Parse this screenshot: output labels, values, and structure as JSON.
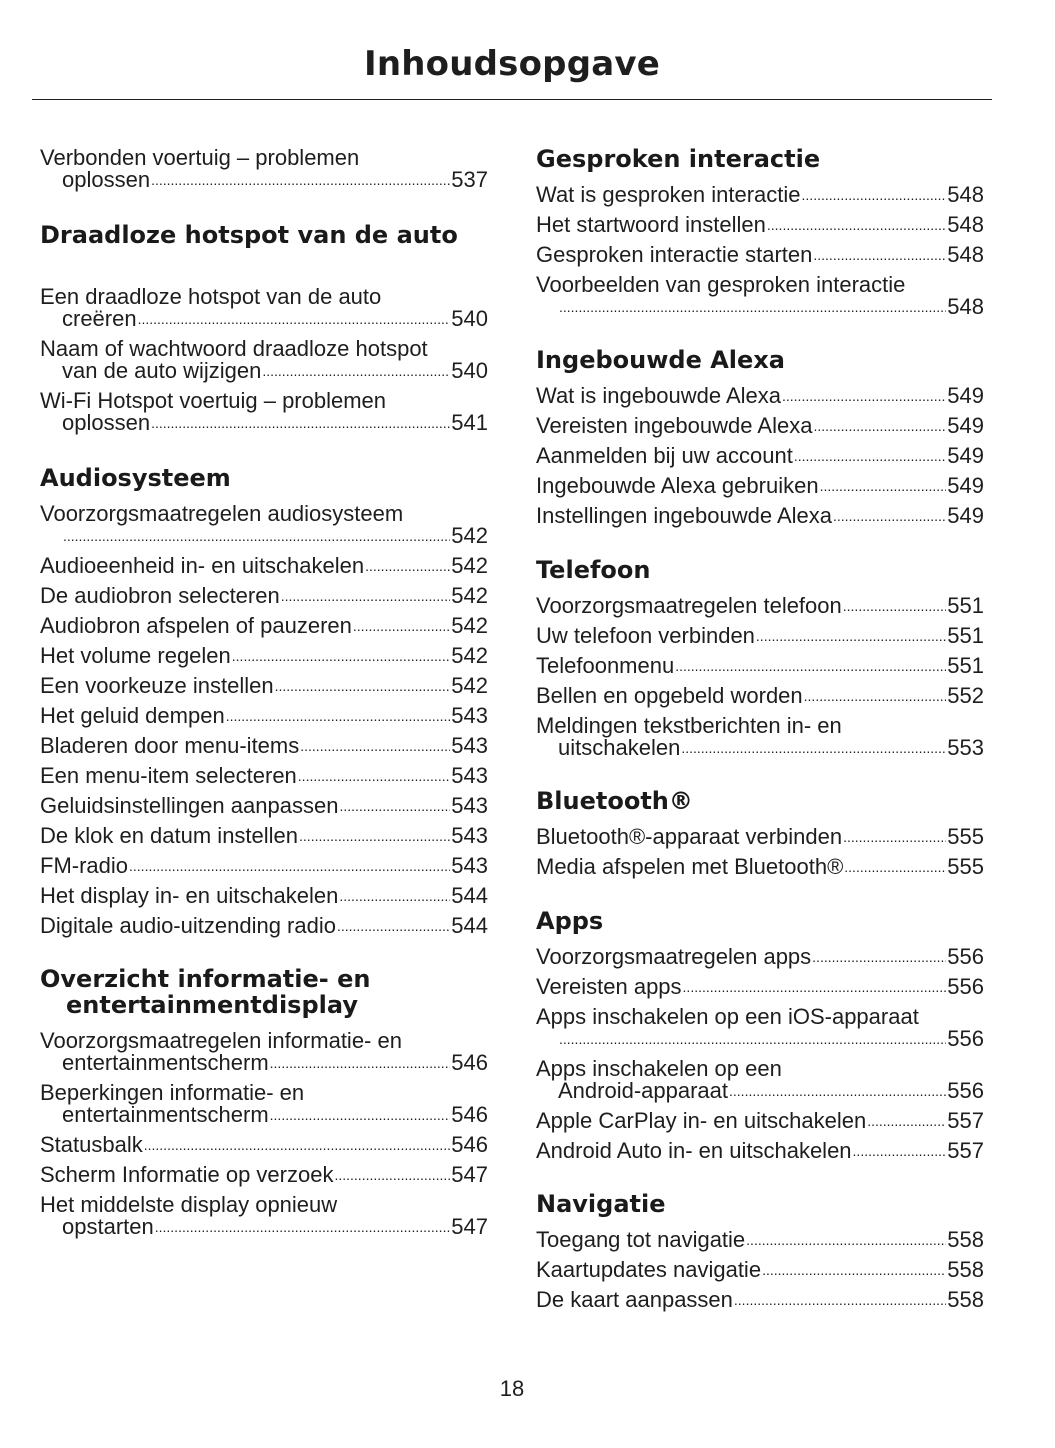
{
  "title": "Inhoudsopgave",
  "page_number": "18",
  "sections": [
    {
      "heading": null,
      "entries": [
        {
          "lines": [
            "Verbonden voertuig – problemen",
            "oplossen"
          ],
          "page": "537"
        }
      ]
    },
    {
      "heading": [
        "Draadloze hotspot van de auto"
      ],
      "entries": [
        {
          "lines": [
            "Een draadloze hotspot van de auto",
            "creëren"
          ],
          "page": "540"
        },
        {
          "lines": [
            "Naam of wachtwoord draadloze hotspot",
            "van de auto wijzigen"
          ],
          "page": "540"
        },
        {
          "lines": [
            "Wi-Fi Hotspot voertuig – problemen",
            "oplossen"
          ],
          "page": "541"
        }
      ]
    },
    {
      "heading": [
        "Audiosysteem"
      ],
      "entries": [
        {
          "lines": [
            "Voorzorgsmaatregelen audiosysteem",
            ""
          ],
          "page": "542"
        },
        {
          "lines": [
            "Audioeenheid in- en uitschakelen"
          ],
          "page": "542"
        },
        {
          "lines": [
            "De audiobron selecteren"
          ],
          "page": "542"
        },
        {
          "lines": [
            "Audiobron afspelen of pauzeren"
          ],
          "page": "542"
        },
        {
          "lines": [
            "Het volume regelen"
          ],
          "page": "542"
        },
        {
          "lines": [
            "Een voorkeuze instellen"
          ],
          "page": "542"
        },
        {
          "lines": [
            "Het geluid dempen"
          ],
          "page": "543"
        },
        {
          "lines": [
            "Bladeren door menu-items"
          ],
          "page": "543"
        },
        {
          "lines": [
            "Een menu-item selecteren"
          ],
          "page": "543"
        },
        {
          "lines": [
            "Geluidsinstellingen aanpassen"
          ],
          "page": "543"
        },
        {
          "lines": [
            "De klok en datum instellen"
          ],
          "page": "543"
        },
        {
          "lines": [
            "FM-radio"
          ],
          "page": "543"
        },
        {
          "lines": [
            "Het display in- en uitschakelen"
          ],
          "page": "544"
        },
        {
          "lines": [
            "Digitale audio-uitzending radio"
          ],
          "page": "544"
        }
      ]
    },
    {
      "heading": [
        "Overzicht informatie- en",
        "entertainmentdisplay"
      ],
      "entries": [
        {
          "lines": [
            "Voorzorgsmaatregelen informatie- en",
            "entertainmentscherm"
          ],
          "page": "546"
        },
        {
          "lines": [
            "Beperkingen informatie- en",
            "entertainmentscherm"
          ],
          "page": "546"
        },
        {
          "lines": [
            "Statusbalk"
          ],
          "page": "546"
        },
        {
          "lines": [
            "Scherm Informatie op verzoek"
          ],
          "page": "547"
        },
        {
          "lines": [
            "Het middelste display opnieuw",
            "opstarten"
          ],
          "page": "547"
        }
      ]
    },
    {
      "heading": [
        "Gesproken interactie"
      ],
      "entries": [
        {
          "lines": [
            "Wat is gesproken interactie"
          ],
          "page": "548"
        },
        {
          "lines": [
            "Het startwoord instellen"
          ],
          "page": "548"
        },
        {
          "lines": [
            "Gesproken interactie starten"
          ],
          "page": "548"
        },
        {
          "lines": [
            "Voorbeelden van gesproken interactie",
            ""
          ],
          "page": "548"
        }
      ]
    },
    {
      "heading": [
        "Ingebouwde Alexa"
      ],
      "entries": [
        {
          "lines": [
            "Wat is ingebouwde Alexa"
          ],
          "page": "549"
        },
        {
          "lines": [
            "Vereisten ingebouwde Alexa"
          ],
          "page": "549"
        },
        {
          "lines": [
            "Aanmelden bij uw account"
          ],
          "page": "549"
        },
        {
          "lines": [
            "Ingebouwde Alexa gebruiken"
          ],
          "page": "549"
        },
        {
          "lines": [
            "Instellingen ingebouwde Alexa"
          ],
          "page": "549"
        }
      ]
    },
    {
      "heading": [
        "Telefoon"
      ],
      "entries": [
        {
          "lines": [
            "Voorzorgsmaatregelen telefoon"
          ],
          "page": "551"
        },
        {
          "lines": [
            "Uw telefoon verbinden"
          ],
          "page": "551"
        },
        {
          "lines": [
            "Telefoonmenu"
          ],
          "page": "551"
        },
        {
          "lines": [
            "Bellen en opgebeld worden"
          ],
          "page": "552"
        },
        {
          "lines": [
            "Meldingen tekstberichten in- en",
            "uitschakelen"
          ],
          "page": "553"
        }
      ]
    },
    {
      "heading": [
        "Bluetooth®"
      ],
      "entries": [
        {
          "lines": [
            "Bluetooth®-apparaat verbinden"
          ],
          "page": "555"
        },
        {
          "lines": [
            "Media afspelen met Bluetooth®"
          ],
          "page": "555"
        }
      ]
    },
    {
      "heading": [
        "Apps"
      ],
      "entries": [
        {
          "lines": [
            "Voorzorgsmaatregelen apps"
          ],
          "page": "556"
        },
        {
          "lines": [
            "Vereisten apps"
          ],
          "page": "556"
        },
        {
          "lines": [
            "Apps inschakelen op een iOS-apparaat",
            ""
          ],
          "page": "556"
        },
        {
          "lines": [
            "Apps inschakelen op een",
            "Android-apparaat"
          ],
          "page": "556"
        },
        {
          "lines": [
            "Apple CarPlay in- en uitschakelen"
          ],
          "page": "557"
        },
        {
          "lines": [
            "Android Auto in- en uitschakelen"
          ],
          "page": "557"
        }
      ]
    },
    {
      "heading": [
        "Navigatie"
      ],
      "entries": [
        {
          "lines": [
            "Toegang tot navigatie"
          ],
          "page": "558"
        },
        {
          "lines": [
            "Kaartupdates navigatie"
          ],
          "page": "558"
        },
        {
          "lines": [
            "De kaart aanpassen"
          ],
          "page": "558"
        }
      ]
    }
  ]
}
